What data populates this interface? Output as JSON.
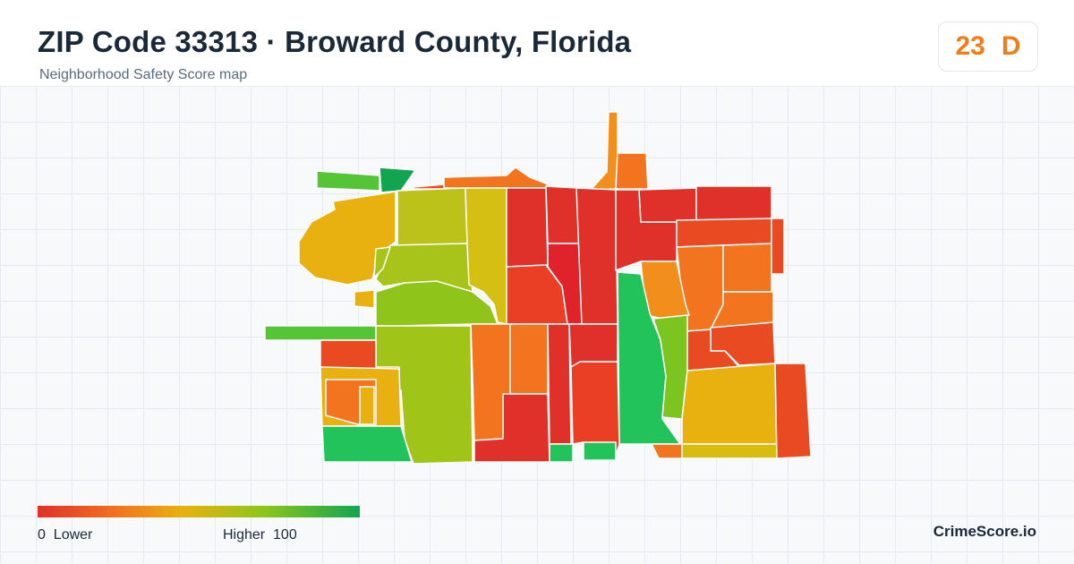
{
  "header": {
    "title": "ZIP Code 33313 · Broward County, Florida",
    "subtitle": "Neighborhood Safety Score map"
  },
  "score": {
    "value": "23",
    "grade": "D",
    "color": "#ef7d1a"
  },
  "legend": {
    "low_value": "0",
    "low_label": "Lower",
    "high_label": "Higher",
    "high_value": "100",
    "colors": [
      "#e0302a",
      "#f2741f",
      "#e9b10f",
      "#8fc51a",
      "#11a552"
    ]
  },
  "brand": "CrimeScore.io",
  "map": {
    "palette": {
      "red": "#e0302a",
      "red_orange": "#ea4a22",
      "orange": "#f2741f",
      "light_orange": "#f28e1c",
      "amber": "#e9b10f",
      "yellow_green": "#bcc21a",
      "lime": "#8fc51a",
      "green": "#55c436",
      "bright_green": "#22c35a",
      "dark_green": "#11a552"
    }
  }
}
